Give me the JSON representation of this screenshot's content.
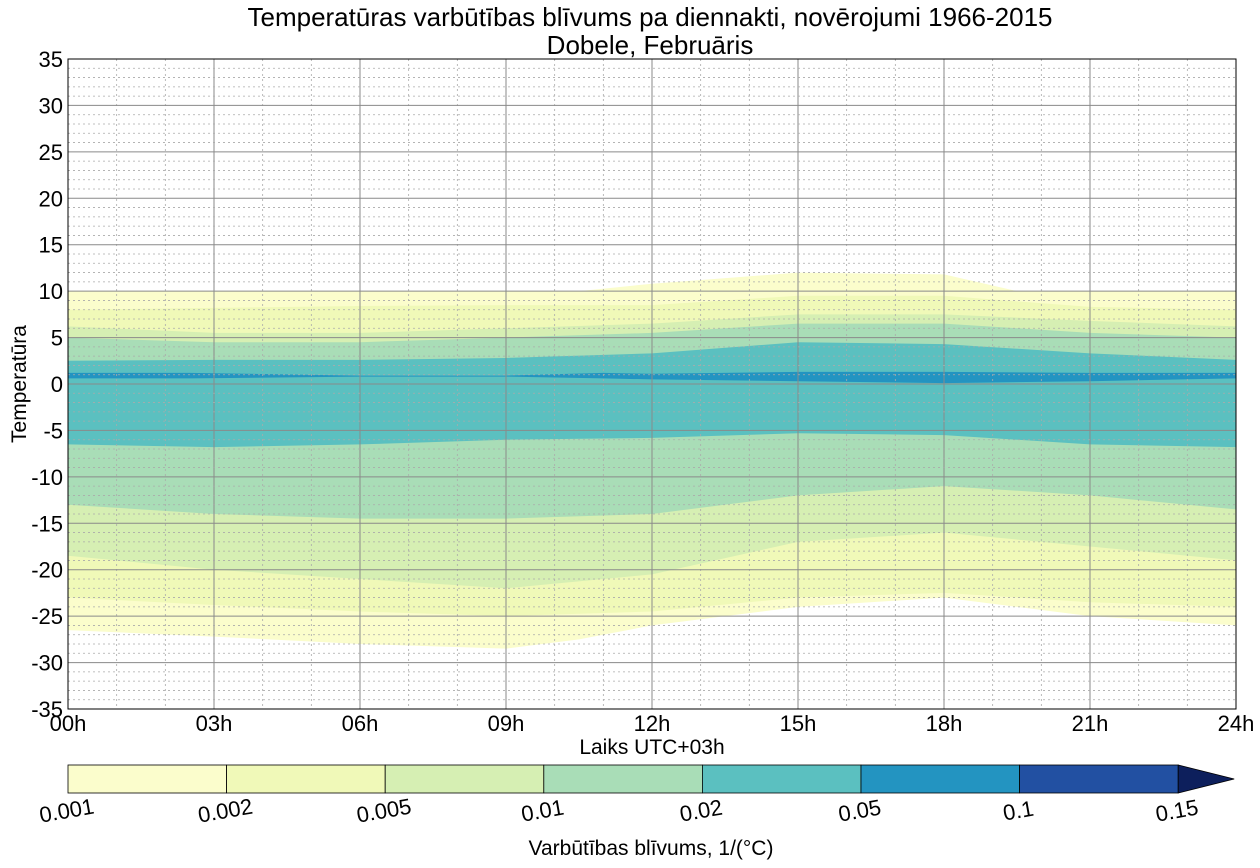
{
  "chart_data": {
    "type": "heatmap",
    "title": "Temperatūras varbūtības blīvums pa diennakti, novērojumi 1966-2015",
    "subtitle": "Dobele, Februāris",
    "xlabel": "Laiks UTC+03h",
    "ylabel": "Temperatūra",
    "xlim": [
      0,
      24
    ],
    "ylim": [
      -35,
      35
    ],
    "x_ticks": [
      {
        "v": 0,
        "label": "00h"
      },
      {
        "v": 3,
        "label": "03h"
      },
      {
        "v": 6,
        "label": "06h"
      },
      {
        "v": 9,
        "label": "09h"
      },
      {
        "v": 12,
        "label": "12h"
      },
      {
        "v": 15,
        "label": "15h"
      },
      {
        "v": 18,
        "label": "18h"
      },
      {
        "v": 21,
        "label": "21h"
      },
      {
        "v": 24,
        "label": "24h"
      }
    ],
    "y_ticks": [
      {
        "v": 35,
        "label": "35"
      },
      {
        "v": 30,
        "label": "30"
      },
      {
        "v": 25,
        "label": "25"
      },
      {
        "v": 20,
        "label": "20"
      },
      {
        "v": 15,
        "label": "15"
      },
      {
        "v": 10,
        "label": "10"
      },
      {
        "v": 5,
        "label": "5"
      },
      {
        "v": 0,
        "label": "0"
      },
      {
        "v": -5,
        "label": "-5"
      },
      {
        "v": -10,
        "label": "-10"
      },
      {
        "v": -15,
        "label": "-15"
      },
      {
        "v": -20,
        "label": "-20"
      },
      {
        "v": -25,
        "label": "-25"
      },
      {
        "v": -30,
        "label": "-30"
      },
      {
        "v": -35,
        "label": "-35"
      }
    ],
    "grid": true,
    "colorbar": {
      "label": "Varbūtības blīvums, 1/(°C)",
      "levels": [
        "0.001",
        "0.002",
        "0.005",
        "0.01",
        "0.02",
        "0.05",
        "0.1",
        "0.15"
      ],
      "colors": [
        "#fbfdcc",
        "#f0f9b8",
        "#d6efb3",
        "#a9ddb7",
        "#5bc0c0",
        "#2394c1",
        "#2250a2",
        "#0d1f5c"
      ],
      "extend": "max"
    },
    "contour_bands": [
      {
        "level": 0,
        "x": [
          0,
          3,
          6,
          9,
          10.5,
          12,
          15,
          18,
          19.5,
          21,
          24
        ],
        "top": [
          10,
          10,
          10,
          10,
          10,
          10.8,
          12,
          11.8,
          10,
          10,
          10
        ],
        "bottom": [
          -26.5,
          -27.2,
          -28,
          -28.5,
          -27.5,
          -26,
          -24,
          -23,
          -24,
          -25,
          -26
        ]
      },
      {
        "level": 1,
        "x": [
          0,
          3,
          6,
          9,
          12,
          15,
          18,
          21,
          24
        ],
        "top": [
          8,
          8.2,
          8.4,
          8.5,
          8.5,
          9.5,
          9.5,
          8.3,
          8
        ],
        "bottom": [
          -23,
          -23.8,
          -24.5,
          -25,
          -24.5,
          -23,
          -22.5,
          -23.5,
          -24
        ]
      },
      {
        "level": 2,
        "x": [
          0,
          3,
          6,
          9,
          12,
          15,
          18,
          21,
          24
        ],
        "top": [
          6.2,
          5.5,
          5.5,
          6,
          6.5,
          7.5,
          7.5,
          6.8,
          6.2
        ],
        "bottom": [
          -18.5,
          -20,
          -21,
          -22,
          -20.5,
          -17,
          -16,
          -17.5,
          -19
        ]
      },
      {
        "level": 3,
        "x": [
          0,
          3,
          6,
          9,
          12,
          15,
          18,
          21,
          24
        ],
        "top": [
          5,
          4.5,
          4.5,
          5,
          5.5,
          6.5,
          6.5,
          5.5,
          5
        ],
        "bottom": [
          -13,
          -14,
          -14.5,
          -14.5,
          -14,
          -12,
          -11,
          -12,
          -13.5
        ]
      },
      {
        "level": 4,
        "x": [
          0,
          3,
          6,
          9,
          12,
          15,
          18,
          21,
          24
        ],
        "top": [
          2.5,
          2.6,
          2.6,
          2.8,
          3.3,
          4.5,
          4.3,
          3.3,
          2.6
        ],
        "bottom": [
          -6.5,
          -6.8,
          -6.5,
          -6,
          -5.8,
          -5.3,
          -5.5,
          -6.5,
          -6.8
        ]
      },
      {
        "level": 5,
        "x": [
          0,
          2.5,
          6,
          9,
          11,
          12,
          15,
          18,
          21,
          24
        ],
        "top": [
          1.2,
          1.2,
          0.9,
          0.9,
          1.2,
          1.1,
          1.3,
          1.3,
          1.2,
          1.2
        ],
        "bottom": [
          0.6,
          0.6,
          0.8,
          0.8,
          0.6,
          0.5,
          0.3,
          0.1,
          0.3,
          0.6
        ]
      }
    ]
  }
}
